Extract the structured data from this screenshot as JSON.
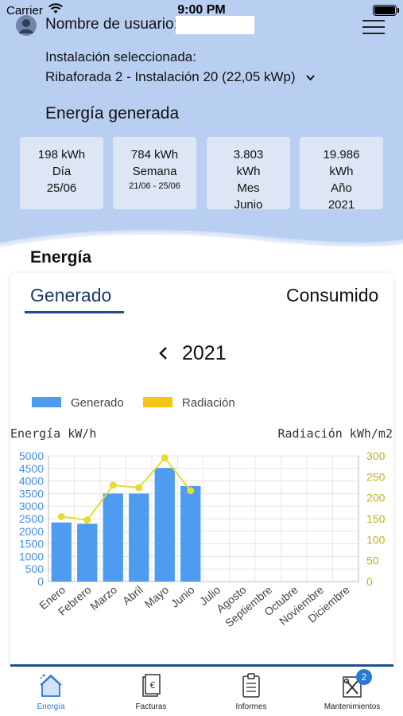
{
  "status_bar": {
    "carrier": "Carrier",
    "time": "9:00 PM"
  },
  "header": {
    "user_label": "Nombre de usuario:",
    "installation_label": "Instalación seleccionada:",
    "installation_value": "Ribaforada 2 - Instalación 20 (22,05 kWp)",
    "generated_title": "Energía generada"
  },
  "stats": [
    {
      "value": "198 kWh",
      "period": "Día",
      "detail": "25/06"
    },
    {
      "value": "784 kWh",
      "period": "Semana",
      "detail": "21/06 - 25/06"
    },
    {
      "value": "3.803",
      "unit": "kWh",
      "period": "Mes",
      "detail": "Junio"
    },
    {
      "value": "19.986",
      "unit": "kWh",
      "period": "Año",
      "detail": "2021"
    }
  ],
  "energy_section": {
    "title": "Energía",
    "tabs": {
      "generated": "Generado",
      "consumed": "Consumido"
    },
    "year": "2021"
  },
  "chart_data": {
    "type": "bar",
    "legend": [
      {
        "name": "Generado",
        "color": "#4e9cf0"
      },
      {
        "name": "Radiación",
        "color": "#f5c518"
      }
    ],
    "ylabel_left": "Energía kW/h",
    "ylabel_right": "Radiación kWh/m2",
    "categories": [
      "Enero",
      "Febrero",
      "Marzo",
      "Abril",
      "Mayo",
      "Junio",
      "Julio",
      "Agosto",
      "Septiembre",
      "Octubre",
      "Noviembre",
      "Diciembre"
    ],
    "left_axis": {
      "min": 0,
      "max": 5000,
      "ticks": [
        0,
        500,
        1000,
        1500,
        2000,
        2500,
        3000,
        3500,
        4000,
        4500,
        5000
      ]
    },
    "right_axis": {
      "min": 0,
      "max": 300,
      "ticks": [
        0,
        50,
        100,
        150,
        200,
        250,
        300
      ]
    },
    "series": [
      {
        "name": "Generado",
        "type": "bar",
        "axis": "left",
        "color": "#4e9cf0",
        "values": [
          2350,
          2300,
          3500,
          3500,
          4520,
          3800,
          null,
          null,
          null,
          null,
          null,
          null
        ]
      },
      {
        "name": "Radiación",
        "type": "line",
        "axis": "right",
        "color": "#e7dc2e",
        "values": [
          155,
          147,
          230,
          224,
          295,
          217,
          null,
          null,
          null,
          null,
          null,
          null
        ]
      }
    ],
    "grid": true,
    "legend_position": "top-left"
  },
  "tabbar": {
    "items": [
      {
        "label": "Energía",
        "icon": "home-icon",
        "active": true
      },
      {
        "label": "Facturas",
        "icon": "invoice-icon",
        "active": false
      },
      {
        "label": "Informes",
        "icon": "clipboard-icon",
        "active": false
      },
      {
        "label": "Mantenimientos",
        "icon": "wrench-icon",
        "active": false
      }
    ],
    "badge": "2"
  },
  "colors": {
    "accent": "#1b4f8f",
    "header_bg": "#b9cff2",
    "card_bg": "#dde6f4",
    "active_tab": "#2a78d6"
  }
}
